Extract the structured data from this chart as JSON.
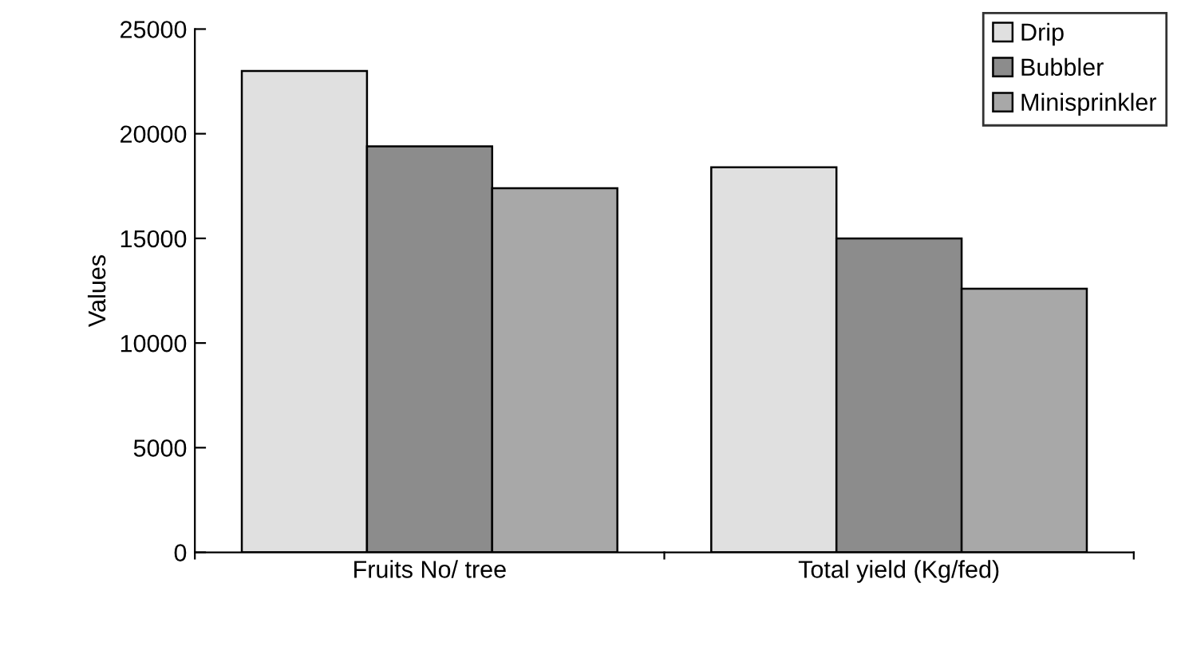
{
  "chart_data": {
    "type": "bar",
    "ylabel": "Values",
    "categories": [
      "Fruits No/ tree",
      "Total yield (Kg/fed)"
    ],
    "series": [
      {
        "name": "Drip",
        "color": "#e0e0e0",
        "values": [
          23000,
          18400
        ]
      },
      {
        "name": "Bubbler",
        "color": "#8c8c8c",
        "values": [
          19400,
          15000
        ]
      },
      {
        "name": "Minisprinkler",
        "color": "#a8a8a8",
        "values": [
          17400,
          12600
        ]
      }
    ],
    "ylim": [
      0,
      25000
    ],
    "yticks": [
      0,
      5000,
      10000,
      15000,
      20000,
      25000
    ],
    "grid": false,
    "legend": "top right"
  }
}
